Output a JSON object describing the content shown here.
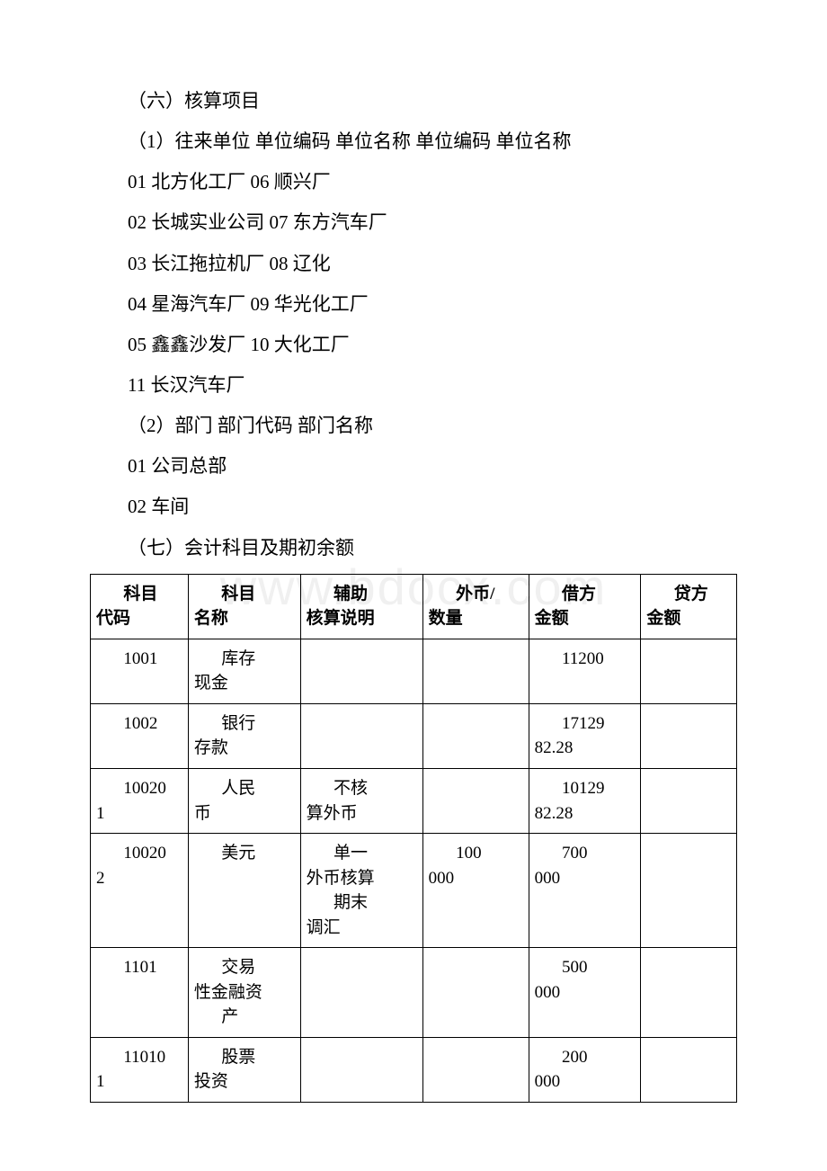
{
  "section6": {
    "title": "（六）核算项目",
    "sub1_header": "（1）往来单位 单位编码 单位名称 单位编码 单位名称",
    "lines": [
      "01 北方化工厂 06 顺兴厂",
      "02 长城实业公司 07 东方汽车厂",
      "03 长江拖拉机厂 08 辽化",
      "04 星海汽车厂 09 华光化工厂",
      "05 鑫鑫沙发厂 10 大化工厂",
      "11 长汉汽车厂"
    ],
    "sub2_header": "（2）部门 部门代码 部门名称",
    "dept_lines": [
      "01 公司总部",
      "02 车间"
    ]
  },
  "section7": {
    "title": "（七）会计科目及期初余额"
  },
  "table": {
    "columns": [
      {
        "l1": "科目",
        "l2": "代码"
      },
      {
        "l1": "科目",
        "l2": "名称"
      },
      {
        "l1": "辅助",
        "l2": "核算说明"
      },
      {
        "l1": "外币/",
        "l2": "数量"
      },
      {
        "l1": "借方",
        "l2": "金额"
      },
      {
        "l1": "贷方",
        "l2": "金额"
      }
    ],
    "rows": [
      {
        "c0_l1": "1001",
        "c0_l2": "",
        "c1_l1": "库存",
        "c1_l2": "现金",
        "c2_l1": "",
        "c2_l2": "",
        "c3_l1": "",
        "c3_l2": "",
        "c4_l1": "11200",
        "c4_l2": "",
        "c5_l1": "",
        "c5_l2": ""
      },
      {
        "c0_l1": "1002",
        "c0_l2": "",
        "c1_l1": "银行",
        "c1_l2": "存款",
        "c2_l1": "",
        "c2_l2": "",
        "c3_l1": "",
        "c3_l2": "",
        "c4_l1": "17129",
        "c4_l2": "82.28",
        "c5_l1": "",
        "c5_l2": ""
      },
      {
        "c0_l1": "10020",
        "c0_l2": "1",
        "c1_l1": "人民",
        "c1_l2": "币",
        "c2_l1": "不核",
        "c2_l2": "算外币",
        "c3_l1": "",
        "c3_l2": "",
        "c4_l1": "10129",
        "c4_l2": "82.28",
        "c5_l1": "",
        "c5_l2": ""
      },
      {
        "c0_l1": "10020",
        "c0_l2": "2",
        "c1_l1": "美元",
        "c1_l2": "",
        "c2_l1": "单一",
        "c2_l2": "外币核算",
        "c2_l3": "期末",
        "c2_l4": "调汇",
        "c3_l1": "100",
        "c3_l2": "000",
        "c4_l1": "700",
        "c4_l2": "000",
        "c5_l1": "",
        "c5_l2": ""
      },
      {
        "c0_l1": "1101",
        "c0_l2": "",
        "c1_l1": "交易",
        "c1_l2": "性金融资",
        "c1_l3": "产",
        "c2_l1": "",
        "c2_l2": "",
        "c3_l1": "",
        "c3_l2": "",
        "c4_l1": "500",
        "c4_l2": "000",
        "c5_l1": "",
        "c5_l2": ""
      },
      {
        "c0_l1": "11010",
        "c0_l2": "1",
        "c1_l1": "股票",
        "c1_l2": "投资",
        "c2_l1": "",
        "c2_l2": "",
        "c3_l1": "",
        "c3_l2": "",
        "c4_l1": "200",
        "c4_l2": "000",
        "c5_l1": "",
        "c5_l2": ""
      }
    ],
    "col_widths": [
      "96px",
      "110px",
      "120px",
      "104px",
      "110px",
      "94px"
    ]
  },
  "watermark": "www.bdocx.com"
}
